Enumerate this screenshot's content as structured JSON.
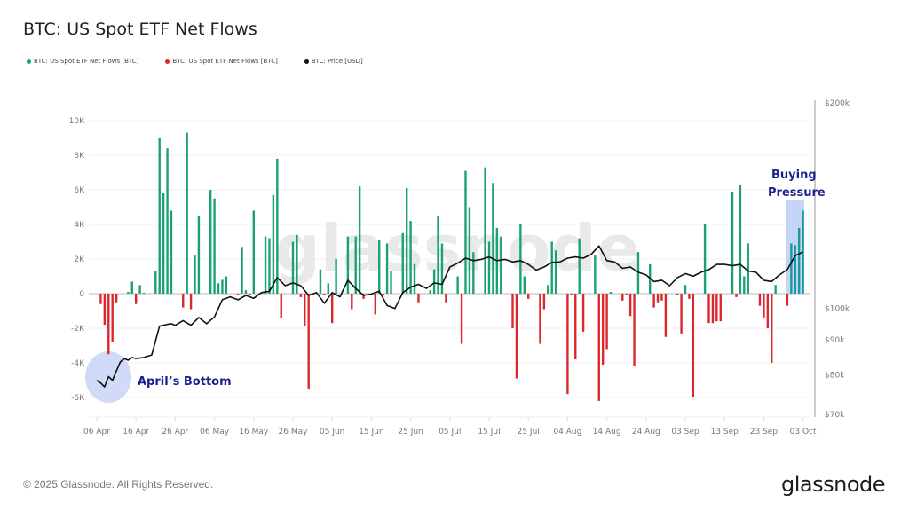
{
  "chart_data": {
    "type": "bar",
    "title": "BTC: US Spot ETF Net Flows",
    "legend": [
      {
        "label": "BTC: US Spot ETF Net Flows [BTC]",
        "color": "#1aa371"
      },
      {
        "label": "BTC: US Spot ETF Net Flows [BTC]",
        "color": "#d9292f"
      },
      {
        "label": "BTC: Price [USD]",
        "color": "#111111"
      }
    ],
    "legend_position": "top-left",
    "xlabel": "",
    "ylabel": "",
    "ylim": [
      -7000,
      10000
    ],
    "y_ticks": [
      {
        "value": 10000,
        "label": "10K"
      },
      {
        "value": 8000,
        "label": "8K"
      },
      {
        "value": 6000,
        "label": "6K"
      },
      {
        "value": 4000,
        "label": "4K"
      },
      {
        "value": 2000,
        "label": "2K"
      },
      {
        "value": 0,
        "label": "0"
      },
      {
        "value": -2000,
        "label": "-2K"
      },
      {
        "value": -4000,
        "label": "-4K"
      },
      {
        "value": -6000,
        "label": "-6K"
      }
    ],
    "y2_scale": "log",
    "y2lim": [
      70000,
      200000
    ],
    "y2_ticks": [
      {
        "value": 200000,
        "label": "$200k"
      },
      {
        "value": 100000,
        "label": "$100k"
      },
      {
        "value": 90000,
        "label": "$90k"
      },
      {
        "value": 80000,
        "label": "$80k"
      },
      {
        "value": 70000,
        "label": "$70k"
      }
    ],
    "x_start": "2025-04-06",
    "x_end": "2025-10-05",
    "x_ticks": [
      {
        "day": 0,
        "label": "06 Apr"
      },
      {
        "day": 10,
        "label": "16 Apr"
      },
      {
        "day": 20,
        "label": "26 Apr"
      },
      {
        "day": 30,
        "label": "06 May"
      },
      {
        "day": 40,
        "label": "16 May"
      },
      {
        "day": 50,
        "label": "26 May"
      },
      {
        "day": 60,
        "label": "05 Jun"
      },
      {
        "day": 70,
        "label": "15 Jun"
      },
      {
        "day": 80,
        "label": "25 Jun"
      },
      {
        "day": 90,
        "label": "05 Jul"
      },
      {
        "day": 100,
        "label": "15 Jul"
      },
      {
        "day": 110,
        "label": "25 Jul"
      },
      {
        "day": 120,
        "label": "04 Aug"
      },
      {
        "day": 130,
        "label": "14 Aug"
      },
      {
        "day": 140,
        "label": "24 Aug"
      },
      {
        "day": 150,
        "label": "03 Sep"
      },
      {
        "day": 160,
        "label": "13 Sep"
      },
      {
        "day": 170,
        "label": "23 Sep"
      },
      {
        "day": 180,
        "label": "03 Oct"
      }
    ],
    "series": [
      {
        "name": "BTC: US Spot ETF Net Flows [BTC]",
        "type": "bar",
        "x_days": [
          1,
          2,
          3,
          4,
          5,
          8,
          9,
          10,
          11,
          12,
          15,
          16,
          17,
          18,
          19,
          22,
          23,
          24,
          25,
          26,
          29,
          30,
          31,
          32,
          33,
          36,
          37,
          38,
          39,
          40,
          43,
          44,
          45,
          46,
          47,
          50,
          51,
          52,
          53,
          54,
          57,
          58,
          59,
          60,
          61,
          64,
          65,
          66,
          67,
          68,
          71,
          72,
          73,
          74,
          75,
          78,
          79,
          80,
          81,
          82,
          85,
          86,
          87,
          88,
          89,
          92,
          93,
          94,
          95,
          96,
          99,
          100,
          101,
          102,
          103,
          106,
          107,
          108,
          109,
          110,
          113,
          114,
          115,
          116,
          117,
          120,
          121,
          122,
          123,
          124,
          127,
          128,
          129,
          130,
          131,
          134,
          135,
          136,
          137,
          138,
          141,
          142,
          143,
          144,
          145,
          148,
          149,
          150,
          151,
          152,
          155,
          156,
          157,
          158,
          159,
          162,
          163,
          164,
          165,
          166,
          169,
          170,
          171,
          172,
          173,
          176,
          177,
          178,
          179,
          180
        ],
        "values": [
          -600,
          -1800,
          -3500,
          -2800,
          -500,
          100,
          700,
          -600,
          500,
          50,
          1300,
          9000,
          5800,
          8400,
          4800,
          -800,
          9300,
          -900,
          2200,
          4500,
          6000,
          5500,
          600,
          800,
          1000,
          -100,
          2700,
          200,
          -100,
          4800,
          3300,
          3200,
          5700,
          7800,
          -1400,
          3000,
          3400,
          -200,
          -1900,
          -5500,
          1400,
          -100,
          600,
          -1700,
          2000,
          3300,
          -900,
          3300,
          6200,
          -300,
          -1200,
          3100,
          -100,
          2900,
          1300,
          3500,
          6100,
          4200,
          1700,
          -500,
          200,
          1400,
          4500,
          2900,
          -500,
          1000,
          -2900,
          7100,
          5000,
          2400,
          7300,
          3000,
          6400,
          3800,
          3300,
          -2000,
          -4900,
          4000,
          1000,
          -300,
          -2900,
          -900,
          500,
          3000,
          2500,
          -5800,
          -100,
          -3800,
          3200,
          -2200,
          2200,
          -6200,
          -4100,
          -3200,
          100,
          -400,
          -100,
          -1300,
          -4200,
          2400,
          1700,
          -800,
          -500,
          -400,
          -2500,
          -100,
          -2300,
          500,
          -300,
          -6000,
          4000,
          -1700,
          -1700,
          -1600,
          -1600,
          5900,
          -200,
          6300,
          1000,
          2900,
          -700,
          -1400,
          -2000,
          -4000,
          500,
          -700,
          2900,
          2800,
          3800,
          4800
        ],
        "colors": {
          "positive": "#1aa371",
          "negative": "#d9292f",
          "highlight": "#1a9a9a"
        }
      },
      {
        "name": "BTC: Price [USD]",
        "type": "line",
        "x_days": [
          0,
          1,
          2,
          3,
          4,
          5,
          6,
          7,
          8,
          9,
          10,
          12,
          14,
          16,
          18,
          19,
          20,
          22,
          24,
          26,
          28,
          30,
          32,
          34,
          36,
          38,
          40,
          42,
          44,
          46,
          48,
          50,
          52,
          54,
          56,
          58,
          60,
          62,
          64,
          66,
          68,
          70,
          72,
          74,
          76,
          78,
          80,
          82,
          84,
          86,
          88,
          90,
          92,
          94,
          96,
          98,
          100,
          102,
          104,
          106,
          108,
          110,
          112,
          114,
          116,
          118,
          120,
          122,
          124,
          126,
          128,
          130,
          132,
          134,
          136,
          138,
          140,
          142,
          144,
          146,
          148,
          150,
          152,
          154,
          156,
          158,
          160,
          162,
          164,
          166,
          168,
          170,
          172,
          174,
          176,
          178,
          180
        ],
        "values": [
          78500,
          77800,
          76800,
          79500,
          78500,
          81000,
          83500,
          84500,
          84000,
          84800,
          84500,
          84800,
          85500,
          94200,
          94800,
          95000,
          94500,
          96000,
          94500,
          97000,
          95000,
          97200,
          103000,
          104000,
          103000,
          104500,
          103500,
          105500,
          106000,
          111000,
          108000,
          109000,
          108000,
          104500,
          105500,
          101800,
          105500,
          104000,
          110000,
          107000,
          104500,
          105000,
          106000,
          101000,
          100000,
          105500,
          107500,
          108500,
          107000,
          109000,
          108500,
          115000,
          116500,
          118500,
          117500,
          118000,
          119000,
          117500,
          118000,
          117000,
          117500,
          116000,
          113800,
          115000,
          116800,
          117000,
          118500,
          119000,
          118500,
          120000,
          123500,
          117500,
          117000,
          114500,
          115000,
          113000,
          112000,
          109500,
          110000,
          108000,
          111000,
          112500,
          111500,
          113000,
          114000,
          116000,
          116000,
          115500,
          116000,
          113500,
          113000,
          110000,
          109500,
          112000,
          114000,
          119500,
          121000
        ]
      }
    ],
    "annotations": [
      {
        "text": "April’s Bottom",
        "day": 3,
        "note": "circle highlight around April low"
      },
      {
        "text": "Buying",
        "line": 1
      },
      {
        "text": "Pressure",
        "line": 2
      }
    ],
    "watermark": "glassnode"
  },
  "footer": {
    "copyright": "© 2025 Glassnode. All Rights Reserved.",
    "logo": "glassnode"
  }
}
